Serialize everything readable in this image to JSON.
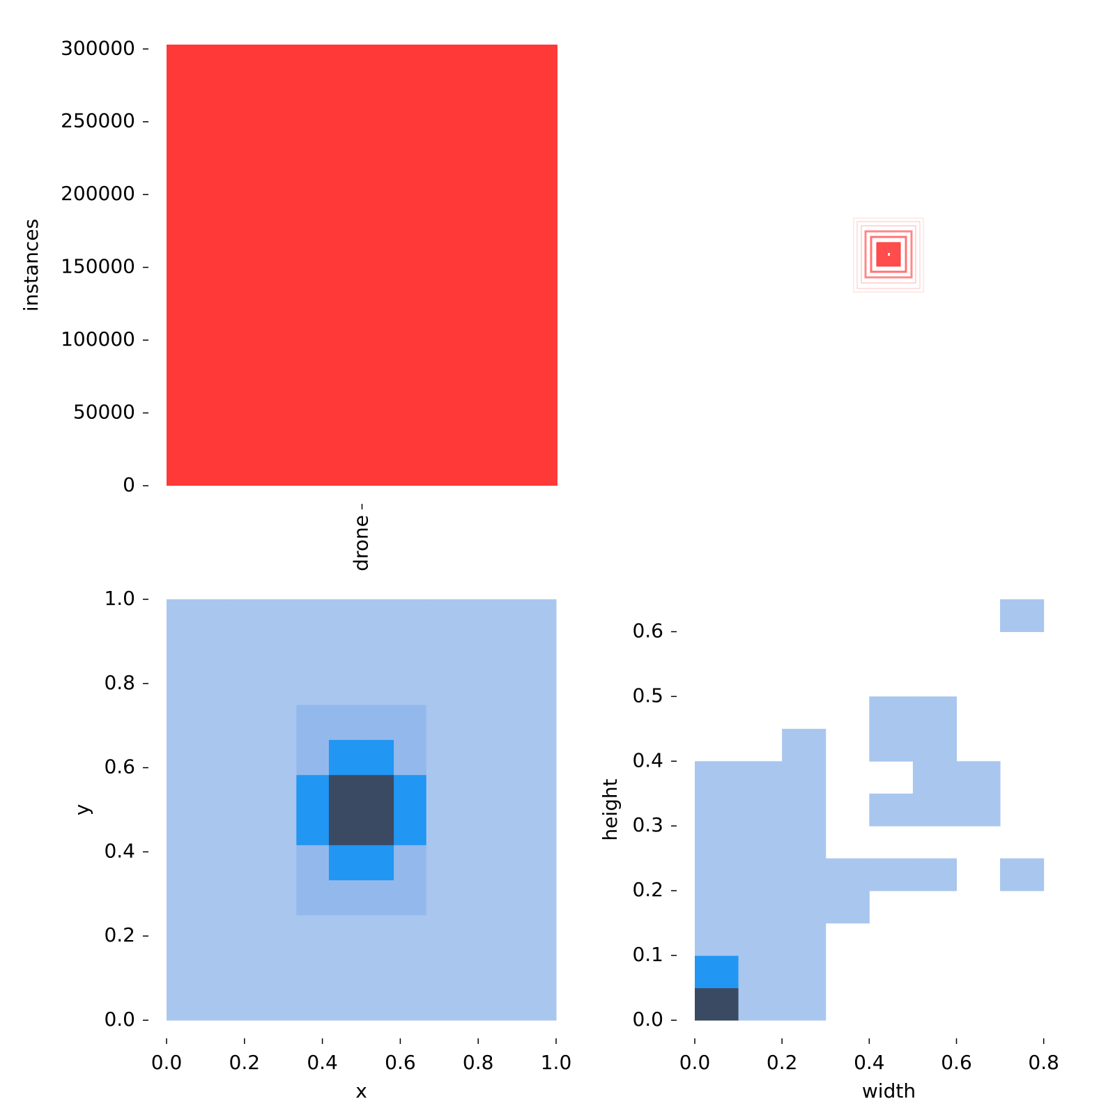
{
  "chart_data": [
    {
      "type": "bar",
      "categories": [
        "drone"
      ],
      "values": [
        303000
      ],
      "color": "#ff3838",
      "ylabel": "instances",
      "ylim": [
        0,
        303000
      ],
      "yticks": [
        0,
        50000,
        100000,
        150000,
        200000,
        250000,
        300000
      ]
    },
    {
      "type": "histogram2d",
      "xlabel": "x",
      "ylabel": "y",
      "xlim": [
        0,
        1
      ],
      "ylim": [
        0,
        1
      ],
      "xticks": [
        {
          "value": 0,
          "label": "0.0"
        },
        0.2,
        0.4,
        0.6,
        0.8,
        {
          "value": 1,
          "label": "1.0"
        }
      ],
      "yticks": [
        {
          "value": 0,
          "label": "0.0"
        },
        0.2,
        0.4,
        0.6,
        0.8,
        {
          "value": 1,
          "label": "1.0"
        }
      ],
      "xbins": [
        0,
        0.0833,
        0.1667,
        0.25,
        0.3333,
        0.4167,
        0.5,
        0.5833,
        0.6667,
        0.75,
        0.8333,
        0.9167,
        1
      ],
      "ybins": [
        0,
        0.0833,
        0.1667,
        0.25,
        0.3333,
        0.4167,
        0.5,
        0.5833,
        0.6667,
        0.75,
        0.8333,
        0.9167,
        1
      ],
      "colors": [
        "#a9c6ee",
        "#93b9ec",
        "#2196f3",
        "#3b4a63"
      ],
      "z": [
        [
          1,
          1,
          1,
          1,
          1,
          1,
          1,
          1,
          1,
          1,
          1,
          1
        ],
        [
          1,
          1,
          1,
          1,
          1,
          1,
          1,
          1,
          1,
          1,
          1,
          1
        ],
        [
          1,
          1,
          1,
          1,
          1,
          1,
          1,
          1,
          1,
          1,
          1,
          1
        ],
        [
          1,
          1,
          1,
          1,
          2,
          2,
          2,
          2,
          1,
          1,
          1,
          1
        ],
        [
          1,
          1,
          1,
          1,
          2,
          3,
          3,
          2,
          1,
          1,
          1,
          1
        ],
        [
          1,
          1,
          1,
          1,
          3,
          4,
          4,
          3,
          1,
          1,
          1,
          1
        ],
        [
          1,
          1,
          1,
          1,
          3,
          4,
          4,
          3,
          1,
          1,
          1,
          1
        ],
        [
          1,
          1,
          1,
          1,
          2,
          3,
          3,
          2,
          1,
          1,
          1,
          1
        ],
        [
          1,
          1,
          1,
          1,
          2,
          2,
          2,
          2,
          1,
          1,
          1,
          1
        ],
        [
          1,
          1,
          1,
          1,
          1,
          1,
          1,
          1,
          1,
          1,
          1,
          1
        ],
        [
          1,
          1,
          1,
          1,
          1,
          1,
          1,
          1,
          1,
          1,
          1,
          1
        ],
        [
          1,
          1,
          1,
          1,
          1,
          1,
          1,
          1,
          1,
          1,
          1,
          1
        ]
      ]
    },
    {
      "type": "histogram2d",
      "xlabel": "width",
      "ylabel": "height",
      "xlim": [
        0,
        0.89
      ],
      "ylim": [
        0,
        0.65
      ],
      "xticks": [
        {
          "value": 0,
          "label": "0.0"
        },
        0.2,
        0.4,
        0.6,
        0.8
      ],
      "yticks": [
        {
          "value": 0,
          "label": "0.0"
        },
        0.1,
        0.2,
        0.3,
        0.4,
        0.5,
        0.6
      ],
      "xbins": [
        0,
        0.1,
        0.2,
        0.3,
        0.4,
        0.5,
        0.6,
        0.7,
        0.8,
        0.89
      ],
      "ybins": [
        0,
        0.05,
        0.1,
        0.15,
        0.2,
        0.25,
        0.3,
        0.35,
        0.4,
        0.45,
        0.5,
        0.55,
        0.6,
        0.65
      ],
      "colors": [
        "#a9c6ee",
        "#93b9ec",
        "#2196f3",
        "#3b4a63"
      ],
      "z": [
        [
          4,
          1,
          1,
          0,
          0,
          0,
          0,
          0,
          0
        ],
        [
          3,
          1,
          1,
          0,
          0,
          0,
          0,
          0,
          0
        ],
        [
          1,
          1,
          1,
          0,
          0,
          0,
          0,
          0,
          0
        ],
        [
          1,
          1,
          1,
          1,
          0,
          0,
          0,
          0,
          0
        ],
        [
          1,
          1,
          1,
          1,
          1,
          1,
          0,
          1,
          0
        ],
        [
          1,
          1,
          1,
          0,
          0,
          0,
          0,
          0,
          0
        ],
        [
          1,
          1,
          1,
          0,
          1,
          1,
          1,
          0,
          0
        ],
        [
          1,
          1,
          1,
          0,
          0,
          1,
          1,
          0,
          0
        ],
        [
          0,
          0,
          1,
          0,
          1,
          1,
          0,
          0,
          0
        ],
        [
          0,
          0,
          0,
          0,
          1,
          1,
          0,
          0,
          0
        ],
        [
          0,
          0,
          0,
          0,
          0,
          0,
          0,
          0,
          0
        ],
        [
          0,
          0,
          0,
          0,
          0,
          0,
          0,
          0,
          0
        ],
        [
          0,
          0,
          0,
          0,
          0,
          0,
          0,
          1,
          0
        ]
      ]
    }
  ]
}
